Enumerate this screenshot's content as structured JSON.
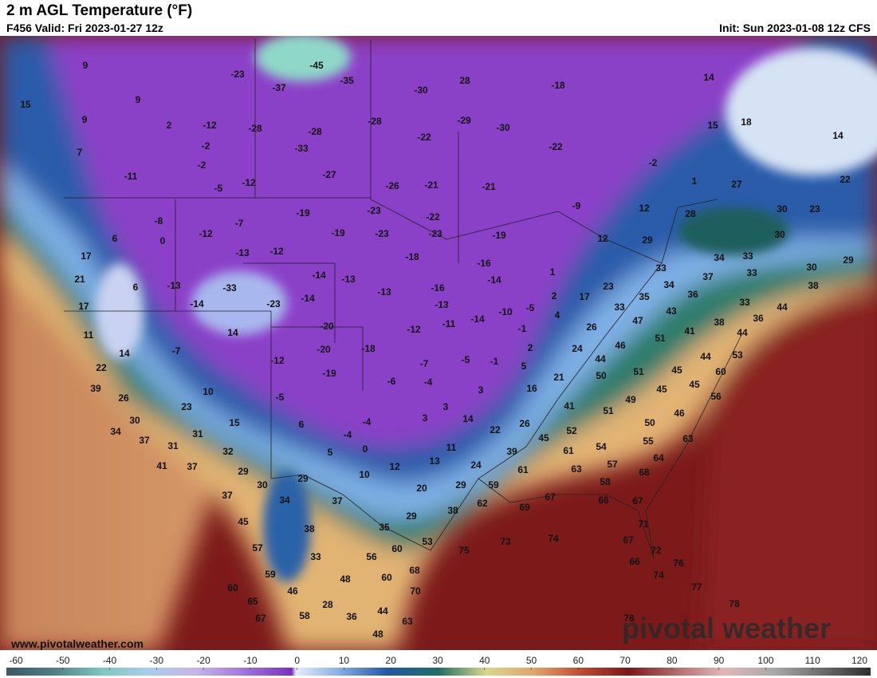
{
  "header": {
    "title": "2 m AGL Temperature (°F)",
    "valid": "F456 Valid: Fri 2023-01-27 12z",
    "init": "Init: Sun 2023-01-08 12z CFS"
  },
  "footer": {
    "url": "www.pivotalweather.com",
    "watermark": "pivotal weather"
  },
  "colorbar": {
    "ticks": [
      -60,
      -50,
      -40,
      -30,
      -20,
      -10,
      0,
      10,
      20,
      30,
      40,
      50,
      60,
      70,
      80,
      90,
      100,
      110,
      120
    ]
  },
  "map": {
    "labels": [
      9,
      -23,
      -45,
      -35,
      -30,
      28,
      -18,
      14,
      15,
      9,
      -37,
      9,
      2,
      -12,
      -28,
      -28,
      -28,
      -29,
      -30,
      15,
      18,
      14,
      7,
      -2,
      -33,
      -22,
      -22,
      -2,
      -2,
      -11,
      -27,
      -12,
      -5,
      -26,
      -21,
      -21,
      1,
      27,
      22,
      -9,
      12,
      28,
      30,
      23,
      -8,
      -19,
      -23,
      -22,
      6,
      -12,
      -7,
      -19,
      -23,
      -23,
      -19,
      12,
      29,
      30,
      0,
      17,
      -13,
      -12,
      -18,
      -16,
      34,
      33,
      30,
      29,
      21,
      6,
      -13,
      -33,
      -14,
      -13,
      -13,
      -16,
      -14,
      1,
      23,
      33,
      37,
      33,
      38,
      17,
      -14,
      -23,
      -14,
      -13,
      -10,
      -5,
      2,
      17,
      35,
      34,
      36,
      33,
      44,
      11,
      14,
      -20,
      -12,
      -11,
      -14,
      -1,
      4,
      26,
      33,
      47,
      43,
      41,
      38,
      36,
      51,
      44,
      14,
      -7,
      -20,
      -18,
      -12,
      2,
      24,
      46,
      53,
      44,
      22,
      -19,
      -7,
      -5,
      -1,
      5,
      44,
      51,
      45,
      60,
      50,
      39,
      10,
      -6,
      -4,
      3,
      16,
      21,
      45,
      45,
      26,
      23,
      -5,
      3,
      49,
      41,
      51,
      56,
      46,
      30,
      15,
      6,
      -4,
      3,
      14,
      22,
      26,
      52,
      50,
      34,
      31,
      -4,
      45,
      54,
      55,
      63,
      37,
      31,
      32,
      5,
      0,
      11,
      39,
      61,
      64,
      41,
      37,
      29,
      12,
      13,
      24,
      61,
      63,
      57,
      68,
      30,
      29,
      10,
      59,
      58,
      37,
      34,
      37,
      20,
      29,
      62,
      69,
      67,
      66,
      67,
      38,
      29,
      38,
      45,
      35,
      71,
      57,
      33,
      60,
      53,
      75,
      73,
      74,
      67,
      72,
      59,
      48,
      56,
      60,
      68,
      66,
      74,
      76,
      60,
      46,
      70,
      77,
      65,
      28,
      44,
      78,
      67,
      58,
      36,
      63,
      78,
      48
    ]
  }
}
